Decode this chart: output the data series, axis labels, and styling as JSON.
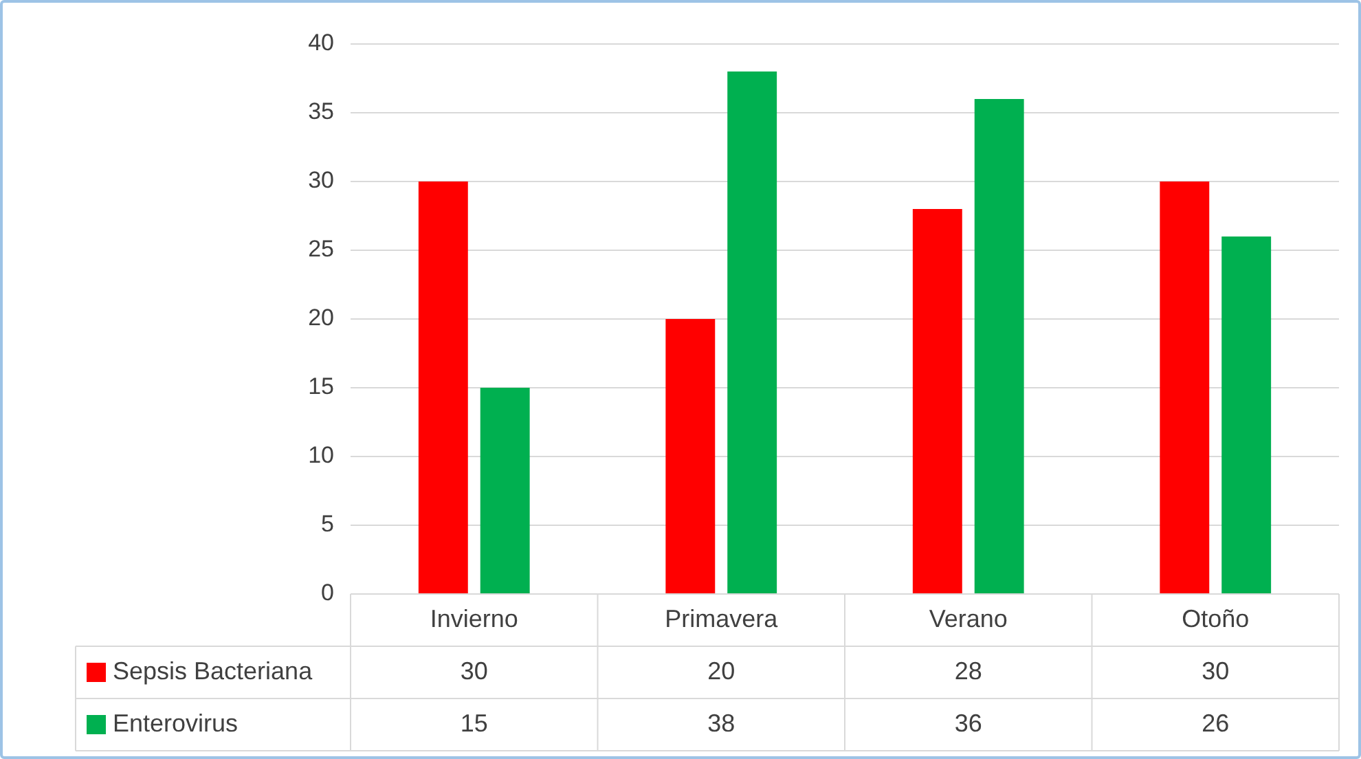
{
  "chart_data": {
    "type": "bar",
    "categories": [
      "Invierno",
      "Primavera",
      "Verano",
      "Otoño"
    ],
    "series": [
      {
        "name": "Sepsis Bacteriana",
        "color": "#ff0000",
        "values": [
          30,
          20,
          28,
          30
        ]
      },
      {
        "name": "Enterovirus",
        "color": "#00b050",
        "values": [
          15,
          38,
          36,
          26
        ]
      }
    ],
    "ylim": [
      0,
      40
    ],
    "yticks": [
      0,
      5,
      10,
      15,
      20,
      25,
      30,
      35,
      40
    ],
    "grid": "y",
    "legend": "bottom",
    "data_labels": true
  }
}
